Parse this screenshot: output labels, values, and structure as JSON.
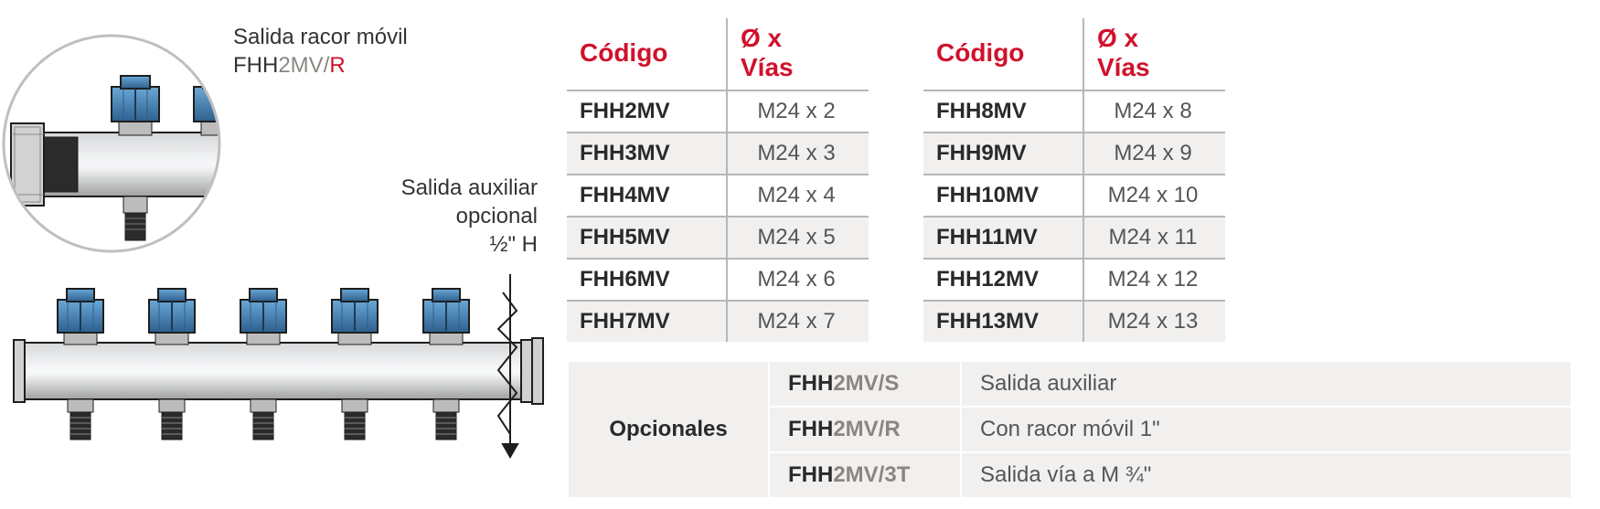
{
  "diagram": {
    "topLabel": {
      "line1": "Salida racor móvil",
      "prefix": "FHH",
      "mid": "2MV",
      "suffixSlash": "/",
      "suffixR": "R"
    },
    "midLabel": {
      "line1": "Salida auxiliar",
      "line2": "opcional",
      "line3": "½\" H"
    },
    "colors": {
      "valveBlue": "#3b7ab3",
      "pipeLight": "#e1e2e3",
      "pipeMid": "#cfd0d1",
      "pipeDark": "#8e8e8e",
      "outline": "#1e1e1e",
      "innerDark": "#2b2b2b"
    }
  },
  "tables": {
    "header1": "Código",
    "header2": "Ø x Vías",
    "left": [
      {
        "code": "FHH2MV",
        "spec": "M24 x 2"
      },
      {
        "code": "FHH3MV",
        "spec": "M24 x 3"
      },
      {
        "code": "FHH4MV",
        "spec": "M24 x 4"
      },
      {
        "code": "FHH5MV",
        "spec": "M24 x 5"
      },
      {
        "code": "FHH6MV",
        "spec": "M24 x 6"
      },
      {
        "code": "FHH7MV",
        "spec": "M24 x 7"
      }
    ],
    "right": [
      {
        "code": "FHH8MV",
        "spec": "M24 x 8"
      },
      {
        "code": "FHH9MV",
        "spec": "M24 x 9"
      },
      {
        "code": "FHH10MV",
        "spec": "M24 x 10"
      },
      {
        "code": "FHH11MV",
        "spec": "M24 x 11"
      },
      {
        "code": "FHH12MV",
        "spec": "M24 x 12"
      },
      {
        "code": "FHH13MV",
        "spec": "M24 x 13"
      }
    ]
  },
  "opcionales": {
    "label": "Opcionales",
    "rows": [
      {
        "codePrefix": "FHH",
        "codeMid": "2MV",
        "codeSuffix": "/S",
        "desc": "Salida auxiliar"
      },
      {
        "codePrefix": "FHH",
        "codeMid": "2MV",
        "codeSuffix": "/R",
        "desc": "Con racor móvil 1\""
      },
      {
        "codePrefix": "FHH",
        "codeMid": "2MV",
        "codeSuffix": "/3T",
        "desc": "Salida vía a M ¾\""
      }
    ]
  },
  "style": {
    "accentRed": "#d0112b",
    "rowAlt": "#f1f0ef",
    "borderGray": "#b7b7b7",
    "textGray": "#555555"
  }
}
